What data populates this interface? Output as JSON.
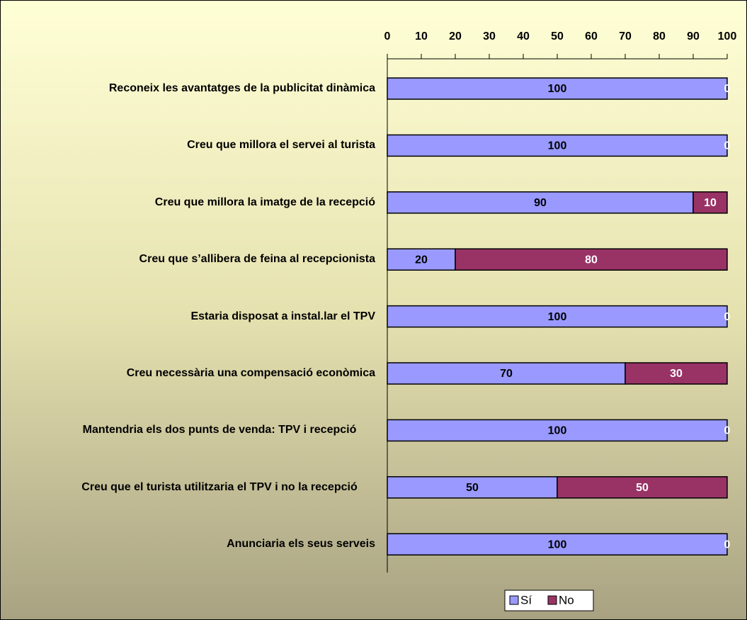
{
  "chart_data": {
    "type": "bar",
    "orientation": "horizontal",
    "stacked": true,
    "categories": [
      "Reconeix les avantatges de la publicitat dinàmica",
      "Creu que millora el servei al turista",
      "Creu que millora la imatge de la recepció",
      "Creu que s’allibera de feina al recepcionista",
      "Estaria disposat a instal.lar el TPV",
      "Creu necessària una compensació econòmica",
      "Mantendria els dos punts de venda: TPV i recepció",
      "Creu que el turista utilitzaria el TPV i no la recepció",
      "Anunciaria els seus serveis"
    ],
    "series": [
      {
        "name": "Sí",
        "color": "#9999ff",
        "values": [
          100,
          100,
          90,
          20,
          100,
          70,
          100,
          50,
          100
        ]
      },
      {
        "name": "No",
        "color": "#993366",
        "values": [
          0,
          0,
          10,
          80,
          0,
          30,
          0,
          50,
          0
        ]
      }
    ],
    "xlim": [
      0,
      100
    ],
    "xticks": [
      0,
      10,
      20,
      30,
      40,
      50,
      60,
      70,
      80,
      90,
      100
    ],
    "legend": "bottom"
  }
}
